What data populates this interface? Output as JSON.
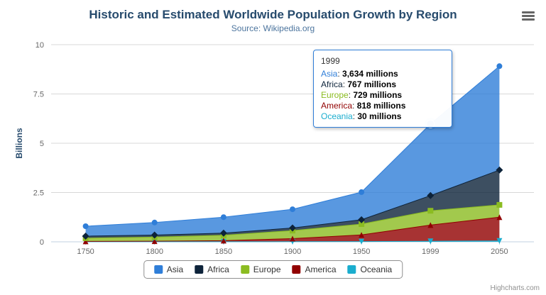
{
  "credits": "Highcharts.com",
  "chart_data": {
    "type": "area",
    "stacking": "normal",
    "title": "Historic and Estimated Worldwide Population Growth by Region",
    "subtitle": "Source: Wikipedia.org",
    "xlabel": "",
    "ylabel": "Billions",
    "ylim": [
      0,
      10
    ],
    "yticks": [
      0,
      2.5,
      5,
      7.5,
      10
    ],
    "ytick_labels": [
      "0",
      "2.5",
      "5",
      "7.5",
      "10"
    ],
    "categories": [
      "1750",
      "1800",
      "1850",
      "1900",
      "1950",
      "1999",
      "2050"
    ],
    "unit": "millions",
    "legend_position": "bottom",
    "grid": true,
    "series": [
      {
        "name": "Asia",
        "color": "#2f7ed8",
        "marker": "circle",
        "values_millions": [
          502,
          635,
          809,
          947,
          1402,
          3634,
          5268
        ]
      },
      {
        "name": "Africa",
        "color": "#0d233a",
        "marker": "diamond",
        "values_millions": [
          106,
          107,
          111,
          133,
          221,
          767,
          1766
        ]
      },
      {
        "name": "Europe",
        "color": "#8bbc21",
        "marker": "square",
        "values_millions": [
          163,
          203,
          276,
          408,
          547,
          729,
          628
        ]
      },
      {
        "name": "America",
        "color": "#910000",
        "marker": "triangle",
        "values_millions": [
          18,
          31,
          54,
          156,
          339,
          818,
          1201
        ]
      },
      {
        "name": "Oceania",
        "color": "#1aadce",
        "marker": "triangle-down",
        "values_millions": [
          2,
          2,
          2,
          6,
          13,
          30,
          46
        ]
      }
    ],
    "hover": {
      "series": "Asia",
      "category": "1999"
    },
    "tooltip": {
      "header": "1999",
      "border_color": "#2f7ed8",
      "rows": [
        {
          "name": "Asia",
          "value": "3,634 millions"
        },
        {
          "name": "Africa",
          "value": "767 millions"
        },
        {
          "name": "Europe",
          "value": "729 millions"
        },
        {
          "name": "America",
          "value": "818 millions"
        },
        {
          "name": "Oceania",
          "value": "30 millions"
        }
      ]
    }
  }
}
